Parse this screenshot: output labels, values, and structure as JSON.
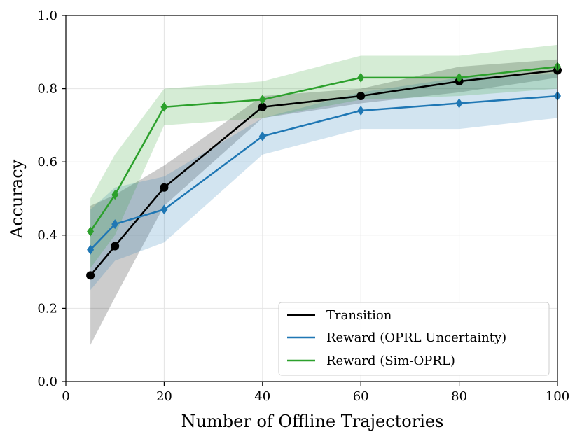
{
  "chart_data": {
    "type": "line",
    "title": "",
    "xlabel": "Number of Offline Trajectories",
    "ylabel": "Accuracy",
    "xlim": [
      0,
      100
    ],
    "ylim": [
      0.0,
      1.0
    ],
    "xticks": [
      0,
      20,
      40,
      60,
      80,
      100
    ],
    "yticks": [
      0.0,
      0.2,
      0.4,
      0.6,
      0.8,
      1.0
    ],
    "xtick_labels": [
      "0",
      "20",
      "40",
      "60",
      "80",
      "100"
    ],
    "ytick_labels": [
      "0.0",
      "0.2",
      "0.4",
      "0.6",
      "0.8",
      "1.0"
    ],
    "grid": true,
    "legend_position": "bottom-right",
    "x": [
      5,
      10,
      20,
      40,
      60,
      80,
      100
    ],
    "series": [
      {
        "name": "Transition",
        "color": "#000000",
        "marker": "circle",
        "values": [
          0.29,
          0.37,
          0.53,
          0.75,
          0.78,
          0.82,
          0.85
        ],
        "lower": [
          0.1,
          0.23,
          0.48,
          0.72,
          0.76,
          0.79,
          0.83
        ],
        "upper": [
          0.48,
          0.51,
          0.59,
          0.78,
          0.8,
          0.86,
          0.88
        ]
      },
      {
        "name": "Reward (OPRL Uncertainty)",
        "color": "#1f77b4",
        "marker": "diamond",
        "values": [
          0.36,
          0.43,
          0.47,
          0.67,
          0.74,
          0.76,
          0.78
        ],
        "lower": [
          0.25,
          0.33,
          0.38,
          0.62,
          0.69,
          0.69,
          0.72
        ],
        "upper": [
          0.47,
          0.53,
          0.56,
          0.72,
          0.79,
          0.83,
          0.84
        ]
      },
      {
        "name": "Reward (Sim-OPRL)",
        "color": "#2ca02c",
        "marker": "diamond",
        "values": [
          0.41,
          0.51,
          0.75,
          0.77,
          0.83,
          0.83,
          0.86
        ],
        "lower": [
          0.31,
          0.4,
          0.7,
          0.72,
          0.77,
          0.78,
          0.8
        ],
        "upper": [
          0.5,
          0.62,
          0.8,
          0.82,
          0.89,
          0.89,
          0.92
        ]
      }
    ]
  }
}
